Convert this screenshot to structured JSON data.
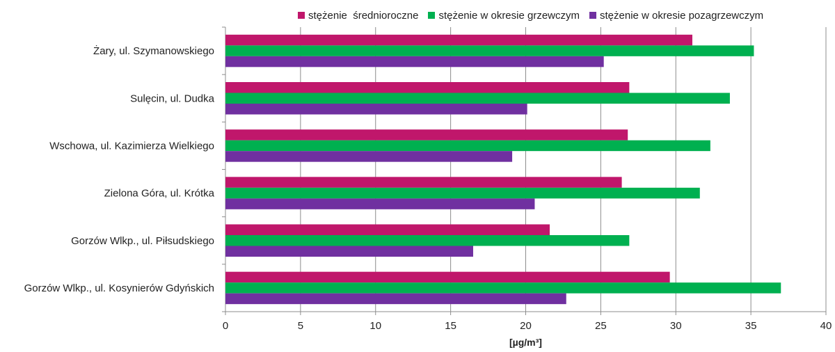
{
  "chart_data": {
    "type": "bar",
    "orientation": "horizontal",
    "categories": [
      "Żary, ul. Szymanowskiego",
      "Sulęcin, ul. Dudka",
      "Wschowa, ul. Kazimierza Wielkiego",
      "Zielona Góra, ul. Krótka",
      "Gorzów Wlkp., ul. Piłsudskiego",
      "Gorzów Wlkp., ul. Kosynierów Gdyńskich"
    ],
    "series": [
      {
        "name": "stężenie  średnioroczne",
        "color": "#C0176B",
        "values": [
          31.1,
          26.9,
          26.8,
          26.4,
          21.6,
          29.6
        ]
      },
      {
        "name": "stężenie w okresie grzewczym",
        "color": "#00B050",
        "values": [
          35.2,
          33.6,
          32.3,
          31.6,
          26.9,
          37.0
        ]
      },
      {
        "name": "stężenie w okresie pozagrzewczym",
        "color": "#7030A0",
        "values": [
          25.2,
          20.1,
          19.1,
          20.6,
          16.5,
          22.7
        ]
      }
    ],
    "xlabel": "[µg/m³]",
    "xlim": [
      0,
      40
    ],
    "xticks": [
      0,
      5,
      10,
      15,
      20,
      25,
      30,
      35,
      40
    ],
    "grid": "vertical",
    "legend_position": "top"
  }
}
